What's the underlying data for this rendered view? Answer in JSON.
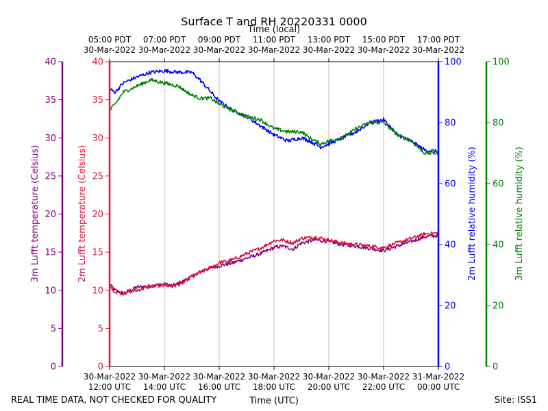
{
  "chart_data": {
    "type": "line",
    "title": "Surface T and RH 20220331 0000",
    "top_axis_title": "Time (local)",
    "xlabel": "Time (UTC)",
    "footer_left": "REAL TIME DATA, NOT CHECKED FOR QUALITY",
    "footer_right": "Site: ISS1",
    "x_hours_range": [
      12,
      24
    ],
    "x_ticks": [
      {
        "hour": 12,
        "utc_date": "30-Mar-2022",
        "utc_time": "12:00 UTC",
        "local_time": "05:00 PDT",
        "local_date": "30-Mar-2022"
      },
      {
        "hour": 14,
        "utc_date": "30-Mar-2022",
        "utc_time": "14:00 UTC",
        "local_time": "07:00 PDT",
        "local_date": "30-Mar-2022"
      },
      {
        "hour": 16,
        "utc_date": "30-Mar-2022",
        "utc_time": "16:00 UTC",
        "local_time": "09:00 PDT",
        "local_date": "30-Mar-2022"
      },
      {
        "hour": 18,
        "utc_date": "30-Mar-2022",
        "utc_time": "18:00 UTC",
        "local_time": "11:00 PDT",
        "local_date": "30-Mar-2022"
      },
      {
        "hour": 20,
        "utc_date": "30-Mar-2022",
        "utc_time": "20:00 UTC",
        "local_time": "13:00 PDT",
        "local_date": "30-Mar-2022"
      },
      {
        "hour": 22,
        "utc_date": "30-Mar-2022",
        "utc_time": "22:00 UTC",
        "local_time": "15:00 PDT",
        "local_date": "30-Mar-2022"
      },
      {
        "hour": 24,
        "utc_date": "31-Mar-2022",
        "utc_time": "00:00 UTC",
        "local_time": "17:00 PDT",
        "local_date": "30-Mar-2022"
      }
    ],
    "axes": {
      "t3m": {
        "label": "3m Lufft temperature (Celsius)",
        "color": "#800080",
        "ylim": [
          0,
          40
        ],
        "ticks": [
          0,
          5,
          10,
          15,
          20,
          25,
          30,
          35,
          40
        ]
      },
      "t2m": {
        "label": "2m Lufft temperature (Celsius)",
        "color": "#dc143c",
        "ylim": [
          0,
          40
        ],
        "ticks": [
          0,
          5,
          10,
          15,
          20,
          25,
          30,
          35,
          40
        ]
      },
      "rh2m": {
        "label": "2m Lufft relative humidity (%)",
        "color": "#0000ff",
        "ylim": [
          0,
          100
        ],
        "ticks": [
          0,
          20,
          40,
          60,
          80,
          100
        ]
      },
      "rh3m": {
        "label": "3m Lufft relative humidity (%)",
        "color": "#008000",
        "ylim": [
          0,
          100
        ],
        "ticks": [
          0,
          20,
          40,
          60,
          80,
          100
        ]
      }
    },
    "grid": "vertical",
    "series": [
      {
        "name": "3m Lufft temperature",
        "axis": "t3m",
        "color": "#800080",
        "x": [
          12,
          12.2,
          12.5,
          13,
          13.3,
          14,
          14.3,
          14.7,
          15,
          15.5,
          16,
          16.5,
          17,
          17.5,
          18,
          18.3,
          18.7,
          19,
          19.5,
          20,
          20.5,
          21,
          21.5,
          22,
          22.5,
          23,
          23.5,
          24
        ],
        "y": [
          10.8,
          10,
          9.6,
          10.4,
          10.5,
          10.8,
          10.6,
          11.2,
          11.8,
          12.8,
          13.2,
          13.6,
          14.2,
          14.8,
          15.6,
          15.8,
          15.4,
          16.2,
          16.6,
          16.4,
          16,
          15.8,
          15.5,
          15.2,
          15.8,
          16.4,
          17,
          17.2
        ]
      },
      {
        "name": "2m Lufft temperature",
        "axis": "t2m",
        "color": "#dc143c",
        "x": [
          12,
          12.2,
          12.5,
          13,
          13.5,
          14,
          14.3,
          14.7,
          15,
          15.5,
          16,
          16.5,
          17,
          17.5,
          18,
          18.3,
          18.7,
          19,
          19.5,
          20,
          20.5,
          21,
          21.5,
          22,
          22.5,
          23,
          23.5,
          24
        ],
        "y": [
          10.5,
          9.8,
          9.6,
          10,
          10.5,
          10.7,
          10.5,
          11,
          11.8,
          12.6,
          13.6,
          14,
          14.8,
          15.5,
          16.5,
          16.6,
          16.2,
          16.8,
          17,
          16.6,
          16.2,
          16,
          15.8,
          15.6,
          16.2,
          16.8,
          17.4,
          17.5
        ]
      },
      {
        "name": "2m Lufft relative humidity",
        "axis": "rh2m",
        "color": "#0000ff",
        "x": [
          12,
          12.2,
          12.5,
          13,
          13.5,
          14,
          14.5,
          15,
          15.3,
          15.7,
          16,
          16.5,
          17,
          17.5,
          18,
          18.5,
          19,
          19.3,
          19.7,
          20,
          20.5,
          21,
          21.5,
          22,
          22.5,
          23,
          23.5,
          24
        ],
        "y": [
          91,
          90,
          93,
          95,
          96.5,
          97,
          96.5,
          96.5,
          94,
          90,
          87,
          84,
          82,
          79,
          76,
          74,
          75,
          74,
          72,
          73,
          75,
          77,
          80,
          81,
          76,
          74,
          71,
          70.5
        ]
      },
      {
        "name": "3m Lufft relative humidity",
        "axis": "rh3m",
        "color": "#008000",
        "x": [
          12,
          12.2,
          12.5,
          13,
          13.5,
          14,
          14.5,
          15,
          15.3,
          15.7,
          16,
          16.5,
          17,
          17.5,
          18,
          18.5,
          19,
          19.3,
          19.7,
          20,
          20.5,
          21,
          21.5,
          22,
          22.5,
          23,
          23.5,
          24
        ],
        "y": [
          84,
          86,
          90,
          92,
          94,
          93,
          92,
          89,
          88,
          88,
          86,
          84,
          82,
          81,
          78,
          77,
          77,
          75,
          73,
          74,
          75,
          78,
          80,
          80,
          76,
          74,
          70,
          70
        ]
      }
    ]
  }
}
